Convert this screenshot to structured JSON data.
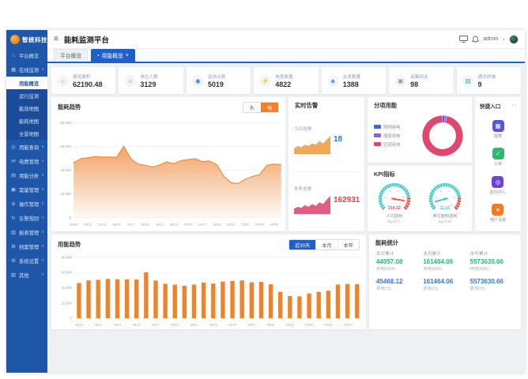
{
  "window": {
    "title": "能耗监测平台",
    "user": "admin"
  },
  "icons": {
    "hamburger": "≡",
    "caret_down": "∨",
    "caret_up": "∧",
    "tab_dot": "●",
    "tab_close": "×",
    "user_caret": "∨",
    "prev": "‹",
    "next": "›"
  },
  "tabs": [
    {
      "label": "平台概览"
    },
    {
      "label": "用能概览"
    }
  ],
  "sidebar": {
    "logo": "智统科技",
    "items": [
      {
        "label": "平台概览",
        "icon": "⌂"
      },
      {
        "label": "在线监测",
        "icon": "▦",
        "expanded": true,
        "children": [
          "用能概览",
          "运行监测",
          "能效地图",
          "能耗地图",
          "全景地图"
        ],
        "active_child": "用能概览"
      },
      {
        "label": "用能查询",
        "icon": "◎"
      },
      {
        "label": "电费管理",
        "icon": "✉"
      },
      {
        "label": "用能分析",
        "icon": "▤"
      },
      {
        "label": "需量管理",
        "icon": "▣"
      },
      {
        "label": "操作管理",
        "icon": "⊕"
      },
      {
        "label": "告警规则",
        "icon": "↻"
      },
      {
        "label": "报表管理",
        "icon": "▥"
      },
      {
        "label": "档案管理",
        "icon": "⊞"
      },
      {
        "label": "系统设置",
        "icon": "⚙"
      },
      {
        "label": "其他",
        "icon": "▧"
      }
    ]
  },
  "stat_cards": [
    {
      "label": "建筑面积",
      "value": "62190.48",
      "icon": "⌂",
      "color": "#8a94a6"
    },
    {
      "label": "单位人数",
      "value": "3129",
      "icon": "☺",
      "color": "#f08c3c"
    },
    {
      "label": "监测点数",
      "value": "5019",
      "icon": "◉",
      "color": "#2e77f6"
    },
    {
      "label": "电表数量",
      "value": "4822",
      "icon": "⚡",
      "color": "#f08c3c"
    },
    {
      "label": "水表数量",
      "value": "1388",
      "icon": "◈",
      "color": "#2e77f6"
    },
    {
      "label": "采集网关",
      "value": "98",
      "icon": "▣",
      "color": "#8a94a6"
    },
    {
      "label": "通讯终端",
      "value": "9",
      "icon": "▤",
      "color": "#35b871"
    }
  ],
  "panels": {
    "alarm": {
      "title": "实时告警",
      "rows": [
        {
          "label": "今日告警",
          "value": "18",
          "color": "#2e77f6"
        },
        {
          "label": "本年告警",
          "value": "162931",
          "color": "#e8433f"
        }
      ]
    },
    "quick": {
      "title": "快捷入口",
      "items": [
        {
          "label": "报表",
          "glyph": "▦",
          "color": "#5856d6"
        },
        {
          "label": "工单",
          "glyph": "✓",
          "color": "#2eb872"
        },
        {
          "label": "监控中心",
          "glyph": "◎",
          "color": "#6f42d8"
        },
        {
          "label": "用户设置",
          "glyph": "≡",
          "color": "#f07b26"
        }
      ]
    },
    "stats": {
      "title": "能耗统计",
      "columns": [
        {
          "period": "本日累计",
          "energy": "44957.08",
          "energy_label": "用电(kWh)",
          "cost": "45468.12",
          "cost_label": "费用(元)"
        },
        {
          "period": "本月累计",
          "energy": "161464.06",
          "energy_label": "用电(kWh)",
          "cost": "161464.06",
          "cost_label": "费用(元)"
        },
        {
          "period": "本年累计",
          "energy": "5573630.66",
          "energy_label": "用电(kWh)",
          "cost": "5573630.66",
          "cost_label": "费用(元)"
        }
      ]
    }
  },
  "chart_data": [
    {
      "id": "energy_trend",
      "type": "area",
      "title": "能耗趋势",
      "toggle": [
        "水",
        "电"
      ],
      "selected_toggle": "电",
      "x": [
        "08/09",
        "08/10",
        "08/11",
        "08/12",
        "08/13",
        "08/14",
        "08/15",
        "08/16",
        "08/17",
        "08/18",
        "08/19",
        "08/20",
        "08/21",
        "08/22",
        "08/23",
        "08/24",
        "08/25",
        "08/26",
        "08/27",
        "08/28",
        "08/29",
        "08/30",
        "08/31",
        "09/01",
        "09/02",
        "09/03",
        "09/04",
        "09/05",
        "09/06",
        "09/07"
      ],
      "values": [
        46200,
        49600,
        50400,
        51500,
        51000,
        51000,
        50800,
        60200,
        49500,
        45000,
        44000,
        42600,
        44100,
        46900,
        45400,
        48000,
        48900,
        49600,
        47100,
        47600,
        44500,
        34600,
        29200,
        28600,
        32500,
        34600,
        36100,
        44100,
        45000,
        44600
      ],
      "ylim": [
        0,
        80000
      ],
      "yticks": [
        0,
        20000,
        40000,
        60000,
        80000
      ],
      "ytick_labels": [
        "0",
        "20,000",
        "40,000",
        "60,000",
        "80,000"
      ],
      "xtick_every": 2,
      "grid": true,
      "color": "#ef8a3c"
    },
    {
      "id": "alarm_today_spark",
      "type": "area",
      "title": "今日告警",
      "value": 18,
      "values": [
        3,
        5,
        4,
        6,
        5,
        7,
        6,
        9,
        7,
        10,
        13
      ],
      "color": "#eda85c"
    },
    {
      "id": "alarm_year_spark",
      "type": "area",
      "title": "本年告警",
      "value": 162931,
      "values": [
        4,
        6,
        5,
        8,
        6,
        9,
        7,
        11,
        9,
        14,
        18
      ],
      "color": "#e35d82"
    },
    {
      "id": "subitem_energy",
      "type": "pie",
      "title": "分项用能",
      "legend_position": "left",
      "slices": [
        {
          "name": "照明用电",
          "value": 2,
          "color": "#3d68d8"
        },
        {
          "name": "插座用电",
          "value": 1.5,
          "color": "#8b5cf6"
        },
        {
          "name": "空调用电",
          "value": 96.5,
          "color": "#e0476e"
        }
      ]
    },
    {
      "id": "kpi_gauges",
      "type": "gauge",
      "title": "KPI指标",
      "scale": [
        0,
        100
      ],
      "red_zone": [
        80,
        100
      ],
      "tick_labels": [
        0,
        20,
        40,
        60,
        80,
        100
      ],
      "gauges": [
        {
          "label": "人均能耗",
          "unit": "kgce/人",
          "value": "218.32",
          "percent": 87,
          "color": "#ee5a52"
        },
        {
          "label": "单位面积能耗",
          "unit": "kgce/㎡",
          "value": "11.01",
          "percent": 11,
          "color": "#45c8c0"
        }
      ]
    },
    {
      "id": "daily_bars",
      "type": "bar",
      "title": "用能趋势",
      "tabs": [
        "近30天",
        "本月",
        "本年"
      ],
      "selected_tab": "近30天",
      "x": [
        "08/09",
        "08/10",
        "08/11",
        "08/12",
        "08/13",
        "08/14",
        "08/15",
        "08/16",
        "08/17",
        "08/18",
        "08/19",
        "08/20",
        "08/21",
        "08/22",
        "08/23",
        "08/24",
        "08/25",
        "08/26",
        "08/27",
        "08/28",
        "08/29",
        "08/30",
        "08/31",
        "09/01",
        "09/02",
        "09/03",
        "09/04",
        "09/05",
        "09/06",
        "09/07"
      ],
      "values": [
        46200,
        49600,
        50400,
        51500,
        51000,
        51000,
        50800,
        60200,
        49500,
        45000,
        44000,
        42600,
        44100,
        46900,
        45400,
        48000,
        48900,
        49600,
        47100,
        47600,
        44500,
        34600,
        29200,
        28600,
        32500,
        34600,
        36100,
        44100,
        45000,
        44600
      ],
      "ylim": [
        0,
        80000
      ],
      "yticks": [
        0,
        20000,
        40000,
        60000,
        80000
      ],
      "ytick_labels": [
        "0",
        "20,000",
        "40,000",
        "60,000",
        "80,000"
      ],
      "xtick_every": 2,
      "grid": true,
      "color": "#f08228"
    }
  ]
}
